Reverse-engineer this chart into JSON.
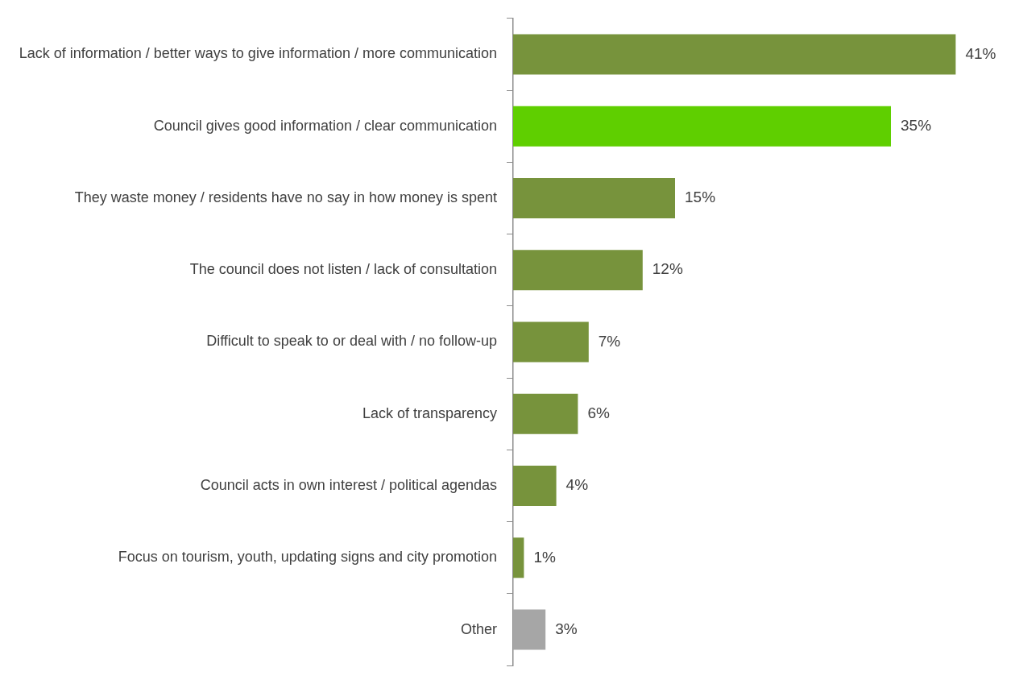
{
  "chart_data": {
    "type": "bar",
    "orientation": "horizontal",
    "categories": [
      "Lack of information / better ways to give information / more communication",
      "Council gives good information / clear communication",
      "They waste money / residents have no say in how money is spent",
      "The council does not listen / lack of consultation",
      "Difficult to speak to or deal with / no follow-up",
      "Lack of transparency",
      "Council acts in own interest / political agendas",
      "Focus on tourism, youth, updating signs and city promotion",
      "Other"
    ],
    "values": [
      41,
      35,
      15,
      12,
      7,
      6,
      4,
      1,
      3
    ],
    "value_labels": [
      "41%",
      "35%",
      "15%",
      "12%",
      "7%",
      "6%",
      "4%",
      "1%",
      "3%"
    ],
    "colors": [
      "#77933c",
      "#5fcf00",
      "#77933c",
      "#77933c",
      "#77933c",
      "#77933c",
      "#77933c",
      "#77933c",
      "#a6a6a6"
    ],
    "grid": false,
    "legend": false
  }
}
